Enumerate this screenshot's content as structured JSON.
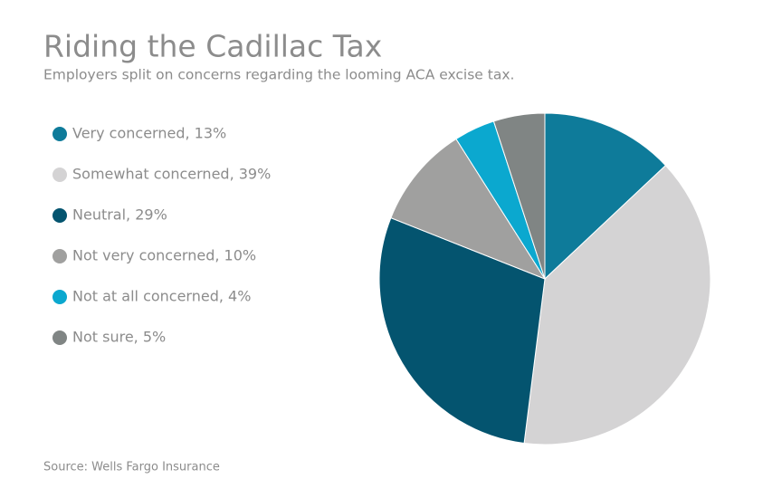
{
  "chart_data": {
    "type": "pie",
    "title": "Riding the Cadillac Tax",
    "subtitle": "Employers split on concerns regarding the looming ACA excise tax.",
    "source": "Source: Wells Fargo Insurance",
    "categories": [
      "Very concerned, 13%",
      "Somewhat concerned, 39%",
      "Neutral, 29%",
      "Not very concerned, 10%",
      "Not at all concerned, 4%",
      "Not sure, 5%"
    ],
    "values": [
      13,
      39,
      29,
      10,
      4,
      5
    ],
    "colors": [
      "#0e7b9a",
      "#d4d3d4",
      "#04546f",
      "#a0a09f",
      "#0ba8cf",
      "#808584"
    ],
    "legend": "left"
  }
}
